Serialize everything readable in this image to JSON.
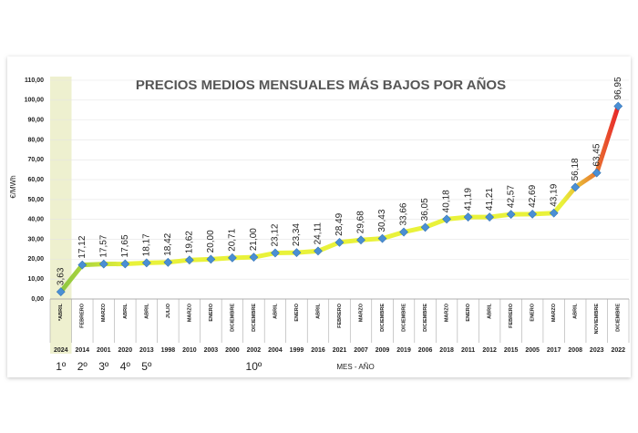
{
  "chart_data": {
    "type": "line",
    "title": "PRECIOS MEDIOS MENSUALES MÁS BAJOS POR AÑOS",
    "y_label": "€/MWh",
    "x_label": "MES - AÑO",
    "categories": [
      "*ABRIL",
      "FEBRERO",
      "MARZO",
      "ABRIL",
      "ABRIL",
      "JULIO",
      "MARZO",
      "ENERO",
      "DICIEMBRE",
      "DICIEMBRE",
      "ABRIL",
      "ENERO",
      "ABRIL",
      "FEBRERO",
      "MARZO",
      "DICIEMBRE",
      "DICIEMBRE",
      "DICIEMBRE",
      "MARZO",
      "ENERO",
      "ABRIL",
      "FEBRERO",
      "ENERO",
      "MARZO",
      "ABRIL",
      "NOVIEMBRE",
      "DICIEMBRE"
    ],
    "years": [
      "2024",
      "2014",
      "2001",
      "2020",
      "2013",
      "1998",
      "2010",
      "2003",
      "2000",
      "2002",
      "2004",
      "1999",
      "2016",
      "2021",
      "2007",
      "2009",
      "2019",
      "2006",
      "2018",
      "2011",
      "2012",
      "2015",
      "2005",
      "2017",
      "2008",
      "2023",
      "2022"
    ],
    "ranks": [
      "1º",
      "2º",
      "3º",
      "4º",
      "5º",
      null,
      null,
      null,
      null,
      "10º",
      null,
      null,
      null,
      null,
      null,
      null,
      null,
      null,
      null,
      null,
      null,
      null,
      null,
      null,
      null,
      null,
      null
    ],
    "values": [
      3.63,
      17.12,
      17.57,
      17.65,
      18.17,
      18.42,
      19.62,
      20.0,
      20.71,
      21.0,
      23.12,
      23.34,
      24.11,
      28.49,
      29.68,
      30.43,
      33.66,
      36.05,
      40.18,
      41.19,
      41.21,
      42.57,
      42.69,
      43.19,
      56.18,
      63.45,
      96.95
    ],
    "value_labels": [
      "3,63",
      "17,12",
      "17,57",
      "17,65",
      "18,17",
      "18,42",
      "19,62",
      "20,00",
      "20,71",
      "21,00",
      "23,12",
      "23,34",
      "24,11",
      "28,49",
      "29,68",
      "30,43",
      "33,66",
      "36,05",
      "40,18",
      "41,19",
      "41,21",
      "42,57",
      "42,69",
      "43,19",
      "56,18",
      "63,45",
      "96,95"
    ],
    "ylim": [
      0,
      110
    ],
    "yticks": [
      {
        "value": 0,
        "label": "0,00"
      },
      {
        "value": 10,
        "label": "10,00"
      },
      {
        "value": 20,
        "label": "20,00"
      },
      {
        "value": 30,
        "label": "30,00"
      },
      {
        "value": 40,
        "label": "40,00"
      },
      {
        "value": 50,
        "label": "50,00"
      },
      {
        "value": 60,
        "label": "60,00"
      },
      {
        "value": 70,
        "label": "70,00"
      },
      {
        "value": 80,
        "label": "80,00"
      },
      {
        "value": 90,
        "label": "90,00"
      },
      {
        "value": 100,
        "label": "100,00"
      },
      {
        "value": 110,
        "label": "110,00"
      }
    ],
    "colors": {
      "line_start": "#8cc63f",
      "line_mid": "#e9f23a",
      "line_end": "#e8262a",
      "marker": "#4a8fd4",
      "highlight": "#eef0cf"
    }
  }
}
